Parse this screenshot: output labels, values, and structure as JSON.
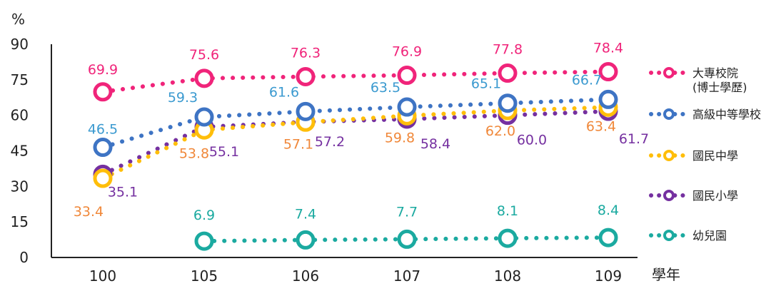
{
  "chart_data": {
    "type": "line",
    "y_unit": "%",
    "xlabel": "學年",
    "categories": [
      "100",
      "105",
      "106",
      "107",
      "108",
      "109"
    ],
    "ylim": [
      0,
      90
    ],
    "yticks": [
      0,
      15,
      30,
      45,
      60,
      75,
      90
    ],
    "grid": false,
    "legend_position": "right",
    "series": [
      {
        "name": "大專校院",
        "name_line2": "(博士學歷)",
        "color": "#F0247A",
        "values": [
          69.9,
          75.6,
          76.3,
          76.9,
          77.8,
          78.4
        ]
      },
      {
        "name": "高級中等學校",
        "color": "#3E74C4",
        "label_color": "#3B9AD0",
        "values": [
          46.5,
          59.3,
          61.6,
          63.5,
          65.1,
          66.7
        ]
      },
      {
        "name": "國民中學",
        "color": "#FFBE0A",
        "label_color": "#F0883A",
        "values": [
          33.4,
          53.8,
          57.1,
          59.8,
          62.0,
          63.4
        ]
      },
      {
        "name": "國民小學",
        "color": "#7530A0",
        "values": [
          35.1,
          55.1,
          57.2,
          58.4,
          60.0,
          61.7
        ]
      },
      {
        "name": "幼兒園",
        "color": "#1BAAA0",
        "values": [
          null,
          6.9,
          7.4,
          7.7,
          8.1,
          8.4
        ]
      }
    ]
  }
}
